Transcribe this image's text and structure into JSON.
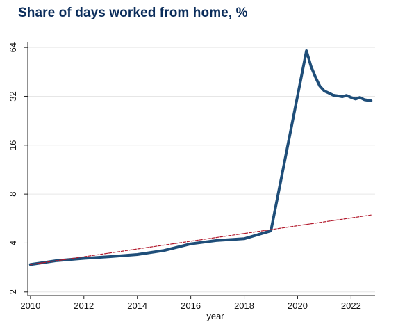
{
  "chart_data": {
    "type": "line",
    "title": "Share of days worked from home, %",
    "xlabel": "year",
    "ylabel": "",
    "y_scale": "log2",
    "xlim": [
      2009.9,
      2022.9
    ],
    "ylim": [
      1.9,
      68
    ],
    "x_ticks": [
      2010,
      2012,
      2014,
      2016,
      2018,
      2020,
      2022
    ],
    "y_ticks": [
      2,
      4,
      8,
      16,
      32,
      64
    ],
    "grid": true,
    "legend": "none",
    "series": [
      {
        "style": "solid",
        "color": "#1f4e79",
        "points": [
          [
            2010,
            2.95
          ],
          [
            2011,
            3.12
          ],
          [
            2012,
            3.22
          ],
          [
            2013,
            3.3
          ],
          [
            2014,
            3.4
          ],
          [
            2015,
            3.6
          ],
          [
            2016,
            3.95
          ],
          [
            2017,
            4.15
          ],
          [
            2018,
            4.25
          ],
          [
            2019,
            4.75
          ],
          [
            2020.33,
            61
          ],
          [
            2020.5,
            49
          ],
          [
            2020.67,
            42
          ],
          [
            2020.83,
            37
          ],
          [
            2021.0,
            34.5
          ],
          [
            2021.17,
            33.5
          ],
          [
            2021.33,
            32.5
          ],
          [
            2021.5,
            32.2
          ],
          [
            2021.67,
            31.8
          ],
          [
            2021.83,
            32.4
          ],
          [
            2022.0,
            31.5
          ],
          [
            2022.17,
            30.8
          ],
          [
            2022.33,
            31.5
          ],
          [
            2022.5,
            30.5
          ],
          [
            2022.75,
            30.0
          ]
        ]
      },
      {
        "style": "dashed",
        "color": "#b2182b",
        "points": [
          [
            2010,
            2.95
          ],
          [
            2022.75,
            5.95
          ]
        ]
      }
    ]
  }
}
